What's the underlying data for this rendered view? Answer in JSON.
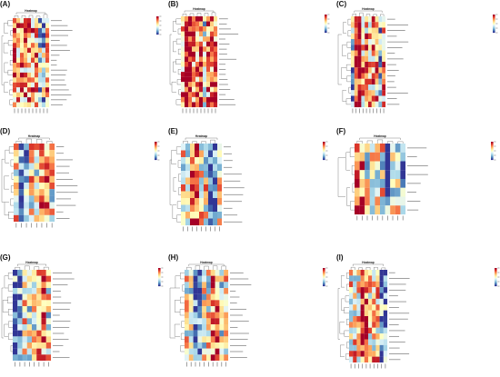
{
  "figure": {
    "palette": [
      "#313695",
      "#4575b4",
      "#74add1",
      "#abd9e9",
      "#e0f3f8",
      "#ffffbf",
      "#fee090",
      "#fdae61",
      "#f46d43",
      "#d73027",
      "#a50026"
    ]
  },
  "chart_data": [
    {
      "label": "(A)",
      "type": "heatmap",
      "title": "Heatmap",
      "rows": 18,
      "cols": 10,
      "range": [
        -2,
        2
      ],
      "seed": 11,
      "bias": 0.9,
      "hot_cols": [],
      "cold_cols": [
        7,
        8
      ]
    },
    {
      "label": "(B)",
      "type": "heatmap",
      "title": "Heatmap",
      "rows": 18,
      "cols": 10,
      "range": [
        -2,
        2
      ],
      "seed": 23,
      "bias": 1.1,
      "hot_cols": [
        1,
        2
      ],
      "cold_cols": [
        6
      ]
    },
    {
      "label": "(C)",
      "type": "heatmap",
      "title": "Heatmap",
      "rows": 16,
      "cols": 10,
      "range": [
        -2,
        2
      ],
      "seed": 37,
      "bias": 0.7,
      "hot_cols": [
        1,
        2
      ],
      "cold_cols": [
        0,
        8
      ]
    },
    {
      "label": "(D)",
      "type": "heatmap",
      "title": "Heatmap",
      "rows": 12,
      "cols": 8,
      "range": [
        -2,
        2
      ],
      "seed": 41,
      "bias": 0.1,
      "hot_cols": [
        5,
        6
      ],
      "cold_cols": [
        1,
        2
      ]
    },
    {
      "label": "(E)",
      "type": "heatmap",
      "title": "Heatmap",
      "rows": 12,
      "cols": 9,
      "range": [
        -2,
        2
      ],
      "seed": 53,
      "bias": 0.1,
      "hot_cols": [
        2,
        3
      ],
      "cold_cols": [
        6,
        7
      ]
    },
    {
      "label": "(F)",
      "type": "heatmap",
      "title": "Heatmap",
      "rows": 8,
      "cols": 10,
      "range": [
        -2,
        2
      ],
      "seed": 67,
      "bias": 0.0,
      "hot_cols": [
        0,
        1
      ],
      "cold_cols": [
        6,
        9
      ]
    },
    {
      "label": "(G)",
      "type": "heatmap",
      "title": "Heatmap",
      "rows": 15,
      "cols": 8,
      "range": [
        -2,
        2
      ],
      "seed": 71,
      "bias": 0.0,
      "hot_cols": [
        5,
        6
      ],
      "cold_cols": [
        0,
        1
      ]
    },
    {
      "label": "(H)",
      "type": "heatmap",
      "title": "Heatmap",
      "rows": 15,
      "cols": 10,
      "range": [
        -2,
        2
      ],
      "seed": 83,
      "bias": 0.0,
      "hot_cols": [
        6,
        7
      ],
      "cold_cols": [
        2,
        3
      ]
    },
    {
      "label": "(I)",
      "type": "heatmap",
      "title": "Heatmap",
      "rows": 16,
      "cols": 10,
      "range": [
        -2,
        2
      ],
      "seed": 97,
      "bias": 0.3,
      "hot_cols": [
        3,
        4
      ],
      "cold_cols": [
        8,
        9
      ]
    }
  ]
}
